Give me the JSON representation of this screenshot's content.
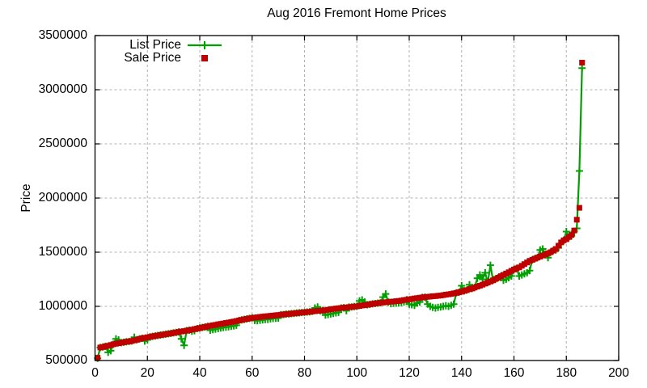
{
  "chart_data": {
    "type": "scatter",
    "title": "Aug 2016 Fremont Home Prices",
    "xlabel": "",
    "ylabel": "Price",
    "xlim": [
      0,
      200
    ],
    "ylim": [
      500000,
      3500000
    ],
    "x_ticks": [
      0,
      20,
      40,
      60,
      80,
      100,
      120,
      140,
      160,
      180,
      200
    ],
    "y_ticks": [
      500000,
      1000000,
      1500000,
      2000000,
      2500000,
      3000000,
      3500000
    ],
    "grid": true,
    "legend_position": "top-left-inside",
    "x_start": 1,
    "point_count": 186,
    "colors": {
      "list": "#00A000",
      "sale": "#C00000",
      "grid": "#B0B0B0",
      "axis": "#000000",
      "background": "#FFFFFF"
    },
    "series": [
      {
        "name": "List Price",
        "marker": "plus",
        "style": "line-with-points",
        "color": "#00A000",
        "values": [
          520000,
          620000,
          625000,
          631000,
          575000,
          590000,
          650000,
          700000,
          690000,
          665000,
          669000,
          673000,
          676000,
          680000,
          715000,
          692000,
          699000,
          705000,
          680000,
          690000,
          719000,
          723000,
          727000,
          731000,
          735000,
          739000,
          743000,
          747000,
          751000,
          755000,
          759000,
          764000,
          700000,
          640000,
          776000,
          780000,
          770000,
          775000,
          795000,
          800000,
          805000,
          810000,
          815000,
          780000,
          785000,
          790000,
          795000,
          800000,
          805000,
          808000,
          812000,
          815000,
          820000,
          825000,
          870000,
          875000,
          880000,
          884000,
          889000,
          893000,
          870000,
          868000,
          872000,
          875000,
          878000,
          880000,
          885000,
          888000,
          890000,
          892000,
          923000,
          925000,
          928000,
          930000,
          933000,
          935000,
          938000,
          940000,
          943000,
          945000,
          948000,
          950000,
          953000,
          985000,
          995000,
          960000,
          963000,
          920000,
          925000,
          930000,
          935000,
          940000,
          945000,
          985000,
          988000,
          960000,
          993000,
          995000,
          998000,
          1000000,
          1050000,
          1060000,
          1040000,
          1015000,
          1019000,
          1023000,
          1026000,
          1030000,
          1033000,
          1085000,
          1115000,
          1040000,
          1025000,
          1028000,
          1030000,
          1032000,
          1036000,
          1040000,
          1061000,
          1020000,
          1015000,
          1010000,
          1030000,
          1040000,
          1083000,
          1085000,
          1020000,
          1000000,
          990000,
          985000,
          990000,
          995000,
          1000000,
          1005000,
          1000000,
          1010000,
          1020000,
          1125000,
          1130000,
          1190000,
          1143000,
          1150000,
          1200000,
          1165000,
          1174000,
          1260000,
          1290000,
          1250000,
          1310000,
          1220000,
          1380000,
          1240000,
          1253000,
          1265000,
          1278000,
          1240000,
          1250000,
          1265000,
          1280000,
          1340000,
          1350000,
          1280000,
          1290000,
          1300000,
          1310000,
          1330000,
          1430000,
          1440000,
          1450000,
          1520000,
          1530000,
          1480000,
          1450000,
          1500000,
          1515000,
          1520000,
          1540000,
          1580000,
          1610000,
          1690000,
          1640000,
          1650000,
          1690000,
          1720000,
          2250000,
          3200000
        ]
      },
      {
        "name": "Sale Price",
        "marker": "square",
        "style": "points",
        "color": "#C00000",
        "values": [
          525000,
          620000,
          625000,
          631000,
          636000,
          643000,
          650000,
          655000,
          660000,
          665000,
          669000,
          673000,
          676000,
          680000,
          686000,
          692000,
          699000,
          705000,
          710000,
          715000,
          719000,
          723000,
          727000,
          731000,
          735000,
          739000,
          743000,
          747000,
          751000,
          755000,
          759000,
          764000,
          768000,
          772000,
          776000,
          780000,
          785000,
          790000,
          795000,
          800000,
          805000,
          810000,
          815000,
          820000,
          825000,
          829000,
          834000,
          838000,
          842000,
          847000,
          851000,
          855000,
          860000,
          865000,
          870000,
          875000,
          880000,
          884000,
          889000,
          893000,
          896000,
          899000,
          902000,
          905000,
          908000,
          910000,
          913000,
          915000,
          918000,
          920000,
          923000,
          925000,
          928000,
          930000,
          933000,
          935000,
          938000,
          940000,
          943000,
          945000,
          948000,
          950000,
          953000,
          955000,
          958000,
          960000,
          963000,
          965000,
          969000,
          973000,
          976000,
          980000,
          983000,
          985000,
          988000,
          990000,
          993000,
          995000,
          998000,
          1000000,
          1004000,
          1008000,
          1011000,
          1015000,
          1019000,
          1023000,
          1026000,
          1030000,
          1033000,
          1035000,
          1038000,
          1040000,
          1043000,
          1045000,
          1048000,
          1050000,
          1054000,
          1058000,
          1061000,
          1065000,
          1069000,
          1073000,
          1076000,
          1080000,
          1083000,
          1085000,
          1088000,
          1090000,
          1093000,
          1095000,
          1098000,
          1100000,
          1104000,
          1108000,
          1111000,
          1115000,
          1120000,
          1125000,
          1130000,
          1135000,
          1143000,
          1150000,
          1158000,
          1165000,
          1174000,
          1183000,
          1191000,
          1200000,
          1210000,
          1220000,
          1230000,
          1240000,
          1253000,
          1265000,
          1278000,
          1290000,
          1303000,
          1315000,
          1328000,
          1340000,
          1350000,
          1360000,
          1375000,
          1390000,
          1405000,
          1420000,
          1430000,
          1440000,
          1450000,
          1460000,
          1470000,
          1480000,
          1490000,
          1500000,
          1515000,
          1530000,
          1560000,
          1590000,
          1610000,
          1620000,
          1640000,
          1660000,
          1700000,
          1800000,
          1910000,
          3250000
        ]
      }
    ]
  }
}
